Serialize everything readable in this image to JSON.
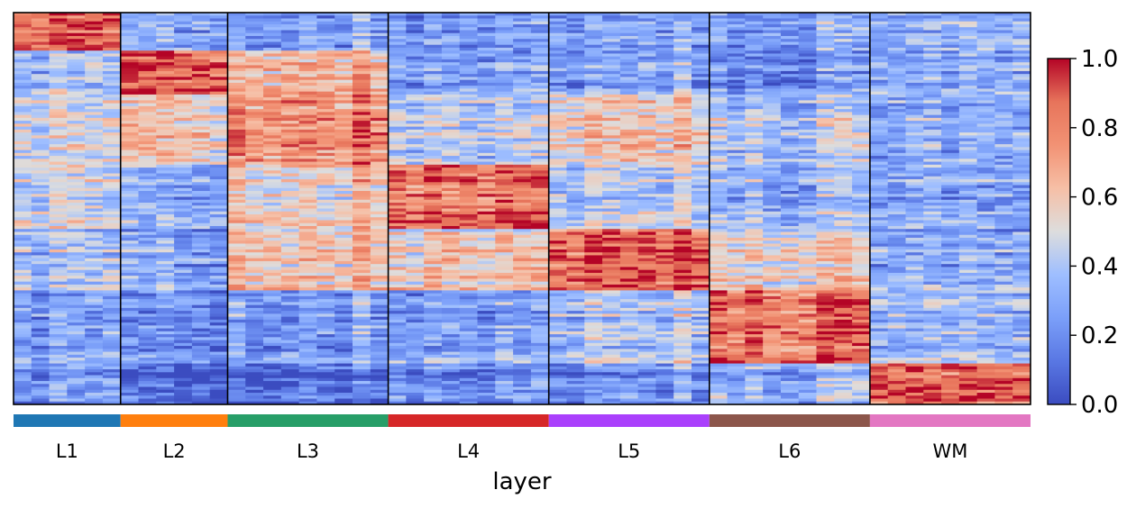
{
  "chart_data": {
    "type": "heatmap",
    "xlabel": "layer",
    "groups": [
      {
        "label": "L1",
        "color": "#1f77b4",
        "columns": 6,
        "profile": [
          0.82,
          0.35,
          0.45,
          0.45,
          0.35,
          0.25,
          0.22
        ]
      },
      {
        "label": "L2",
        "color": "#ff7f0e",
        "columns": 6,
        "profile": [
          0.3,
          0.92,
          0.62,
          0.35,
          0.3,
          0.22,
          0.08
        ]
      },
      {
        "label": "L3",
        "color": "#279e68",
        "columns": 9,
        "profile": [
          0.25,
          0.68,
          0.8,
          0.6,
          0.62,
          0.28,
          0.12
        ]
      },
      {
        "label": "L4",
        "color": "#d62728",
        "columns": 9,
        "profile": [
          0.22,
          0.28,
          0.45,
          0.88,
          0.6,
          0.28,
          0.22
        ]
      },
      {
        "label": "L5",
        "color": "#aa40fc",
        "columns": 9,
        "profile": [
          0.25,
          0.28,
          0.6,
          0.45,
          0.9,
          0.4,
          0.22
        ]
      },
      {
        "label": "L6",
        "color": "#8c564b",
        "columns": 9,
        "profile": [
          0.25,
          0.2,
          0.4,
          0.35,
          0.55,
          0.85,
          0.32
        ]
      },
      {
        "label": "WM",
        "color": "#e377c2",
        "columns": 9,
        "profile": [
          0.3,
          0.3,
          0.3,
          0.3,
          0.3,
          0.35,
          0.88
        ]
      }
    ],
    "gene_blocks": {
      "labels": [
        "L1",
        "L2",
        "L3",
        "L4",
        "L5",
        "L6",
        "WM"
      ],
      "row_counts": [
        13,
        15,
        24,
        22,
        21,
        25,
        14
      ]
    },
    "colorbar": {
      "colormap": "coolwarm",
      "range": [
        0.0,
        1.0
      ],
      "ticks": [
        "0.0",
        "0.2",
        "0.4",
        "0.6",
        "0.8",
        "1.0"
      ]
    },
    "value_range": [
      0,
      1
    ]
  }
}
